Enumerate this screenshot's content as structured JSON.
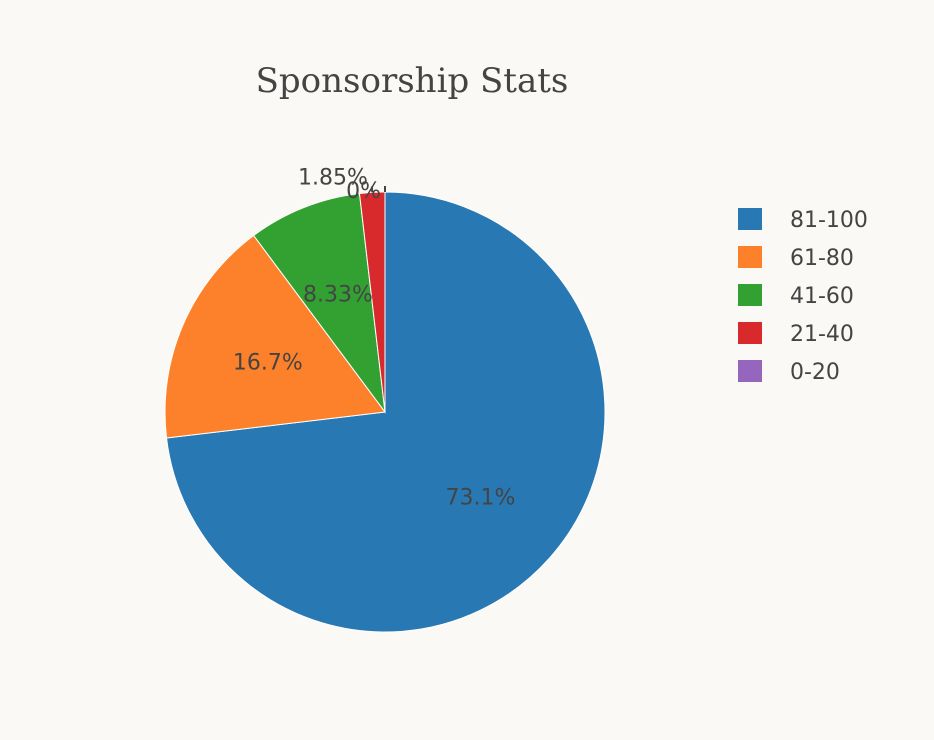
{
  "chart_data": {
    "type": "pie",
    "title": "Sponsorship Stats",
    "direction": "clockwise",
    "start_angle_deg": 0,
    "slices": [
      {
        "name": "81-100",
        "value": 73.1,
        "label": "73.1%",
        "color": "#2878b4"
      },
      {
        "name": "61-80",
        "value": 16.7,
        "label": "16.7%",
        "color": "#fd812b"
      },
      {
        "name": "41-60",
        "value": 8.33,
        "label": "8.33%",
        "color": "#33a132"
      },
      {
        "name": "21-40",
        "value": 1.85,
        "label": "1.85%",
        "color": "#d82a2c"
      },
      {
        "name": "0-20",
        "value": 0,
        "label": "0%",
        "color": "#9466bd"
      }
    ],
    "legend": {
      "position": "right"
    }
  }
}
